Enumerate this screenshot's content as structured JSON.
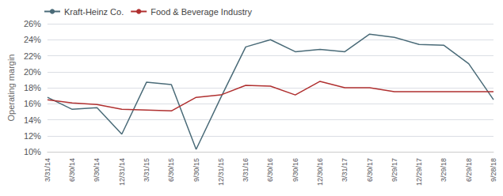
{
  "chart_data": {
    "type": "line",
    "categories": [
      "3/31/14",
      "6/30/14",
      "9/30/14",
      "12/31/14",
      "3/31/15",
      "6/30/15",
      "9/30/15",
      "12/31/15",
      "3/31/16",
      "6/30/16",
      "9/30/16",
      "12/30/16",
      "3/31/17",
      "6/30/17",
      "9/29/17",
      "12/29/17",
      "3/29/18",
      "6/29/18",
      "9/28/18"
    ],
    "series": [
      {
        "name": "Kraft-Heinz Co.",
        "color": "#4a6b78",
        "values": [
          16.8,
          15.3,
          15.5,
          12.2,
          18.7,
          18.4,
          10.3,
          16.8,
          23.1,
          24.0,
          22.5,
          22.8,
          22.5,
          24.7,
          24.3,
          23.4,
          23.3,
          21.0,
          16.5
        ]
      },
      {
        "name": "Food & Beverage Industry",
        "color": "#b03030",
        "values": [
          16.5,
          16.1,
          15.9,
          15.3,
          15.2,
          15.1,
          16.8,
          17.1,
          18.3,
          18.2,
          17.1,
          18.8,
          18.0,
          18.0,
          17.5,
          17.5,
          17.5,
          17.5,
          17.5
        ]
      }
    ],
    "ylabel": "Operating margin",
    "ylim": [
      10,
      26
    ],
    "yticks": [
      {
        "value": 10,
        "label": "10%"
      },
      {
        "value": 12,
        "label": "12%"
      },
      {
        "value": 14,
        "label": "14%"
      },
      {
        "value": 16,
        "label": "16%"
      },
      {
        "value": 18,
        "label": "18%"
      },
      {
        "value": 20,
        "label": "20%"
      },
      {
        "value": 22,
        "label": "22%"
      },
      {
        "value": 24,
        "label": "24%"
      },
      {
        "value": 26,
        "label": "26%"
      }
    ],
    "grid": true,
    "legend": "top-left"
  }
}
